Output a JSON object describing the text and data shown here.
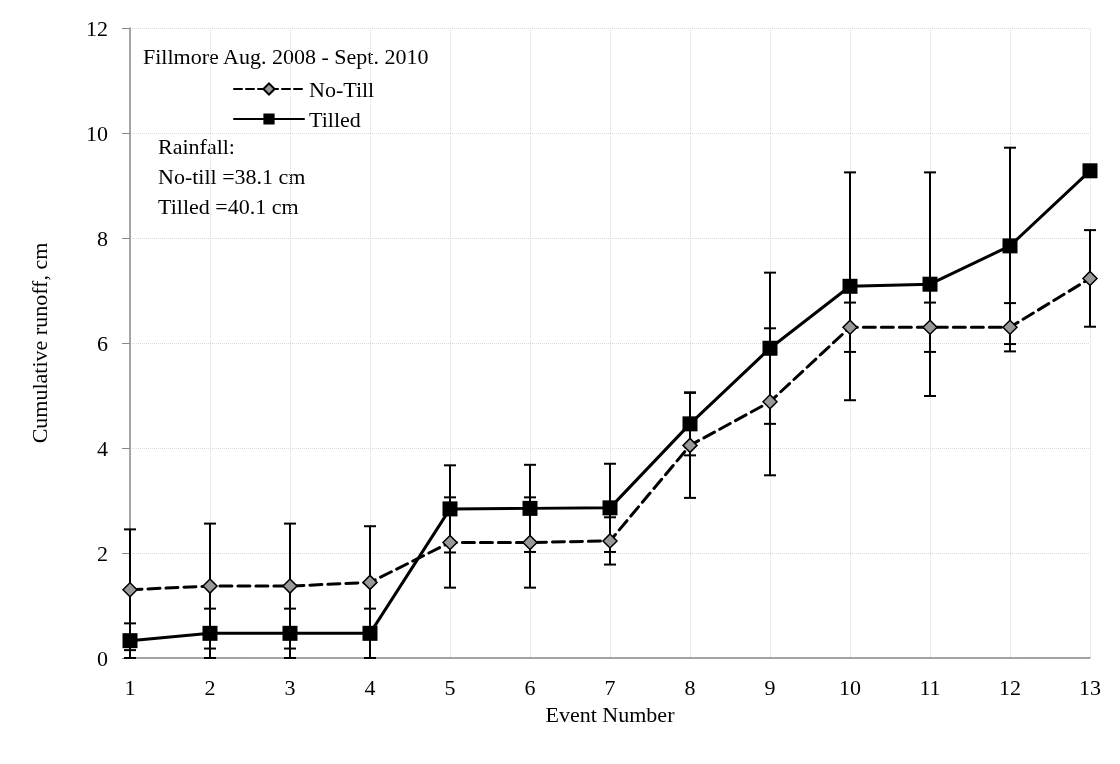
{
  "chart_data": {
    "type": "line",
    "xlabel": "Event Number",
    "ylabel": "Cumulative runoff, cm",
    "annotations": [
      "Fillmore Aug. 2008 - Sept. 2010",
      "Rainfall:",
      "No-till =38.1 cm",
      "Tilled =40.1 cm"
    ],
    "x": [
      1,
      2,
      3,
      4,
      5,
      6,
      7,
      8,
      9,
      10,
      11,
      12,
      13
    ],
    "series": [
      {
        "name": "No-Till",
        "color": "#999999",
        "marker": "diamond",
        "line_style": "dashed",
        "values": [
          1.3,
          1.37,
          1.37,
          1.44,
          2.2,
          2.2,
          2.23,
          4.05,
          4.88,
          6.3,
          6.3,
          6.3,
          7.23
        ],
        "errors": [
          1.15,
          1.19,
          1.19,
          1.07,
          0.86,
          0.86,
          0.45,
          1.0,
          1.4,
          0.47,
          0.47,
          0.46,
          0.92
        ]
      },
      {
        "name": "Tilled",
        "color": "#000000",
        "marker": "square",
        "line_style": "solid",
        "values": [
          0.33,
          0.47,
          0.47,
          0.47,
          2.84,
          2.85,
          2.86,
          4.46,
          5.9,
          7.08,
          7.12,
          7.85,
          9.28
        ],
        "errors": [
          0.33,
          0.47,
          0.47,
          0.47,
          0.83,
          0.83,
          0.84,
          0.6,
          1.44,
          2.17,
          2.13,
          1.87,
          null
        ]
      }
    ],
    "xlim": [
      1,
      13
    ],
    "xticks": [
      1,
      2,
      3,
      4,
      5,
      6,
      7,
      8,
      9,
      10,
      11,
      12,
      13
    ],
    "ylim": [
      0,
      12
    ],
    "yticks": [
      0,
      2,
      4,
      6,
      8,
      10,
      12
    ],
    "grid": true,
    "legend": "top left"
  }
}
